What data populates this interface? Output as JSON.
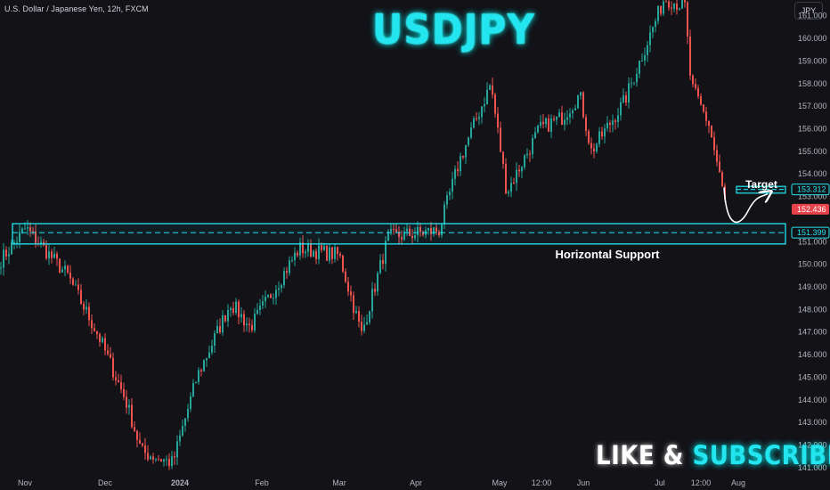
{
  "header": {
    "symbol_info": "U.S. Dollar / Japanese Yen, 12h, FXCM",
    "currency_button": "JPY"
  },
  "overlay": {
    "title": "USDJPY",
    "cta_like": "LIKE & ",
    "cta_subscribe": "SUBSCRIBE",
    "support_label": "Horizontal Support",
    "target_label": "Target"
  },
  "colors": {
    "background": "#121217",
    "up": "#26a69a",
    "down": "#ef5350",
    "accent": "#22e5f0",
    "axis_text": "#b2b5be",
    "current_price_tag": "#e8434a"
  },
  "chart_data": {
    "type": "candlestick",
    "ylim": [
      140.6,
      161.7
    ],
    "y_ticks": [
      "161.000",
      "160.000",
      "159.000",
      "158.000",
      "157.000",
      "156.000",
      "155.000",
      "154.000",
      "153.000",
      "151.000",
      "150.000",
      "149.000",
      "148.000",
      "147.000",
      "146.000",
      "145.000",
      "144.000",
      "143.000",
      "142.000",
      "141.000"
    ],
    "x_ticks": [
      "Nov",
      "Dec",
      "2024",
      "Feb",
      "Mar",
      "Apr",
      "May",
      "12:00",
      "Jun",
      "Jul",
      "12:00",
      "Aug"
    ],
    "price_tags": {
      "target": "153.312",
      "current": "152.436",
      "support": "151.399"
    },
    "path_anchors": [
      {
        "t": "Nov",
        "price": 150.2
      },
      {
        "t": "Nov",
        "price": 151.6
      },
      {
        "t": "Nov",
        "price": 149.5
      },
      {
        "t": "Dec",
        "price": 146.8
      },
      {
        "t": "Dec",
        "price": 144.0
      },
      {
        "t": "Dec",
        "price": 141.7
      },
      {
        "t": "2024",
        "price": 141.2
      },
      {
        "t": "2024",
        "price": 145.0
      },
      {
        "t": "Feb",
        "price": 148.3
      },
      {
        "t": "Feb",
        "price": 147.2
      },
      {
        "t": "Feb",
        "price": 150.7
      },
      {
        "t": "Mar",
        "price": 150.4
      },
      {
        "t": "Mar",
        "price": 146.9
      },
      {
        "t": "Mar",
        "price": 151.2
      },
      {
        "t": "Apr",
        "price": 151.5
      },
      {
        "t": "Apr",
        "price": 154.6
      },
      {
        "t": "May",
        "price": 158.0
      },
      {
        "t": "May",
        "price": 153.2
      },
      {
        "t": "12:00",
        "price": 156.0
      },
      {
        "t": "12:00",
        "price": 156.5
      },
      {
        "t": "Jun",
        "price": 157.5
      },
      {
        "t": "Jun",
        "price": 155.0
      },
      {
        "t": "Jun",
        "price": 157.2
      },
      {
        "t": "Jul",
        "price": 161.8
      },
      {
        "t": "Jul",
        "price": 161.4
      },
      {
        "t": "12:00",
        "price": 157.9
      },
      {
        "t": "12:00",
        "price": 156.2
      },
      {
        "t": "12:00",
        "price": 152.4
      }
    ],
    "support_zone": [
      150.9,
      151.8
    ],
    "support_level": 151.399,
    "target_zone": [
      153.15,
      153.45
    ],
    "target_level": 153.312,
    "projection": {
      "from": 152.0,
      "to": 153.2
    }
  }
}
